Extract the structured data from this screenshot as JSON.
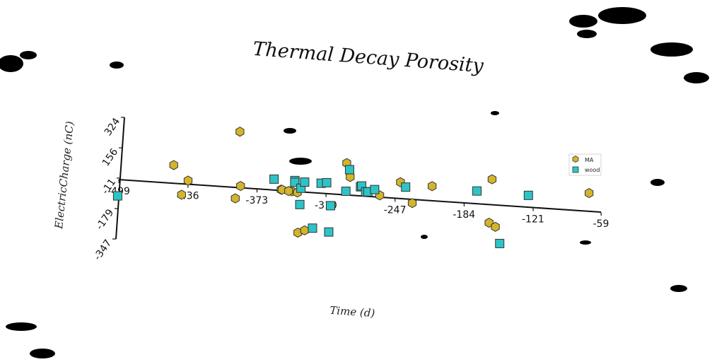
{
  "chart_data": {
    "type": "scatter",
    "title": "Thermal Decay Porosity",
    "xlabel": "Time (d)",
    "ylabel": "ElectricCharge (nC)",
    "x_ticks": [
      -499,
      -436,
      -373,
      -310,
      -247,
      -184,
      -121,
      -59
    ],
    "y_ticks": [
      -347,
      -179,
      -11,
      156,
      324
    ],
    "xlim": [
      -499,
      -59
    ],
    "ylim": [
      -347,
      324
    ],
    "legend_position": "right",
    "series": [
      {
        "name": "MA",
        "marker": "hexagon",
        "color": "#d4b52a",
        "points": [
          [
            -392,
            308
          ],
          [
            -450,
            100
          ],
          [
            -436,
            20
          ],
          [
            -441,
            -60
          ],
          [
            -388,
            10
          ],
          [
            -392,
            -60
          ],
          [
            -351,
            5
          ],
          [
            -350,
            5
          ],
          [
            -341,
            0
          ],
          [
            -344,
            0
          ],
          [
            -336,
            -5
          ],
          [
            -333,
            -225
          ],
          [
            -327,
            -210
          ],
          [
            -293,
            175
          ],
          [
            -289,
            100
          ],
          [
            -261,
            10
          ],
          [
            -243,
            90
          ],
          [
            -231,
            -20
          ],
          [
            -214,
            80
          ],
          [
            -160,
            140
          ],
          [
            -160,
            -100
          ],
          [
            -154,
            -120
          ],
          [
            -71,
            100
          ]
        ]
      },
      {
        "name": "wood",
        "color": "#2ec4c6",
        "marker": "square",
        "points": [
          [
            -499,
            -90
          ],
          [
            -358,
            60
          ],
          [
            -339,
            60
          ],
          [
            -339,
            50
          ],
          [
            -333,
            20
          ],
          [
            -333,
            -70
          ],
          [
            -330,
            55
          ],
          [
            -320,
            -195
          ],
          [
            -315,
            55
          ],
          [
            -310,
            60
          ],
          [
            -305,
            -65
          ],
          [
            -305,
            -210
          ],
          [
            -290,
            140
          ],
          [
            -292,
            20
          ],
          [
            -279,
            50
          ],
          [
            -278,
            55
          ],
          [
            -274,
            25
          ],
          [
            -272,
            25
          ],
          [
            -266,
            40
          ],
          [
            -238,
            65
          ],
          [
            -173,
            70
          ],
          [
            -149,
            -210
          ],
          [
            -126,
            65
          ]
        ]
      }
    ]
  }
}
